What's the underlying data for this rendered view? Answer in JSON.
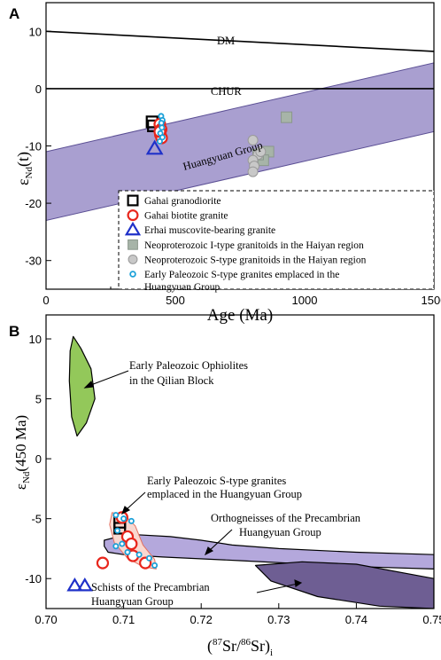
{
  "chart_data": [
    {
      "panel": "A",
      "type": "scatter",
      "xlabel": "Age (Ma)",
      "ylabel": "εNd(t)",
      "xlim": [
        0,
        1500
      ],
      "ylim": [
        -35,
        15
      ],
      "xticks": [
        "0",
        "500",
        "1000",
        "1500"
      ],
      "yticks": [
        "10",
        "0",
        "-10",
        "-20",
        "-30"
      ],
      "lines": [
        {
          "label": "DM",
          "x": [
            0,
            1500
          ],
          "y": [
            10,
            6.5
          ]
        },
        {
          "label": "CHUR",
          "x": [
            0,
            1500
          ],
          "y": [
            0,
            0
          ]
        }
      ],
      "band": {
        "label": "Huangyuan Group",
        "x": [
          0,
          1500
        ],
        "upper": [
          -11,
          4.5
        ],
        "lower": [
          -23,
          -7.5
        ],
        "color": "#a99fd0"
      },
      "series": [
        {
          "name": "Gahai granodiorite",
          "marker": "square",
          "color": "#000000",
          "points": [
            [
              410,
              -5.8
            ],
            [
              415,
              -6.5
            ]
          ]
        },
        {
          "name": "Gahai biotite granite",
          "marker": "circle",
          "color": "#e8261c",
          "points": [
            [
              440,
              -6.2
            ],
            [
              445,
              -7.1
            ],
            [
              442,
              -8.0
            ],
            [
              447,
              -8.6
            ],
            [
              440,
              -7.5
            ]
          ]
        },
        {
          "name": "Erhai muscovite-bearing granite",
          "marker": "triangle",
          "color": "#1f31c9",
          "points": [
            [
              420,
              -10.5
            ]
          ]
        },
        {
          "name": "Neoproterozoic I-type granitoids in the Haiyan region",
          "marker": "square",
          "color": "#a7b4a8",
          "points": [
            [
              930,
              -5
            ],
            [
              860,
              -11
            ],
            [
              840,
              -12.5
            ],
            [
              820,
              -11.5
            ]
          ]
        },
        {
          "name": "Neoproterozoic S-type granitoids in the Haiyan region",
          "marker": "circle",
          "color": "#c8c8c8",
          "points": [
            [
              800,
              -9
            ],
            [
              820,
              -11.5
            ],
            [
              800,
              -12.5
            ],
            [
              805,
              -13.5
            ],
            [
              800,
              -14.5
            ],
            [
              830,
              -11
            ]
          ]
        },
        {
          "name": "Early Paleozoic S-type granites emplaced in the Huangyuan Group",
          "marker": "circle-small",
          "color": "#1aa0d8",
          "points": [
            [
              445,
              -4.8
            ],
            [
              450,
              -5.5
            ],
            [
              448,
              -6.8
            ],
            [
              442,
              -7.8
            ],
            [
              450,
              -8.5
            ],
            [
              440,
              -9.2
            ],
            [
              446,
              -6.0
            ]
          ]
        }
      ]
    },
    {
      "panel": "B",
      "type": "scatter",
      "xlabel": "(87Sr/86Sr)i",
      "ylabel": "εNd(450 Ma)",
      "xlim": [
        0.7,
        0.75
      ],
      "ylim": [
        -12.5,
        12
      ],
      "xticks": [
        "0.70",
        "0.71",
        "0.72",
        "0.73",
        "0.74",
        "0.75"
      ],
      "yticks": [
        "10",
        "5",
        "0",
        "-5",
        "-10"
      ],
      "fields": [
        {
          "name": "Early Paleozoic Ophiolites in the Qilian Block",
          "color": "#93c85a",
          "outline": [
            [
              0.7035,
              10.2
            ],
            [
              0.7045,
              9.2
            ],
            [
              0.7058,
              7.5
            ],
            [
              0.7063,
              5.0
            ],
            [
              0.7052,
              3.0
            ],
            [
              0.704,
              1.9
            ],
            [
              0.7033,
              3.5
            ],
            [
              0.703,
              6.5
            ],
            [
              0.7031,
              9.0
            ]
          ]
        },
        {
          "name": "Orthogneisses of the Precambrian Huangyuan Group",
          "color": "#b4a8dc",
          "outline": [
            [
              0.7075,
              -6.8
            ],
            [
              0.7105,
              -6.3
            ],
            [
              0.716,
              -6.5
            ],
            [
              0.72,
              -6.8
            ],
            [
              0.724,
              -7.2
            ],
            [
              0.73,
              -7.5
            ],
            [
              0.74,
              -7.8
            ],
            [
              0.75,
              -8.0
            ],
            [
              0.75,
              -9.2
            ],
            [
              0.74,
              -9.0
            ],
            [
              0.725,
              -8.5
            ],
            [
              0.715,
              -8.2
            ],
            [
              0.71,
              -8.0
            ],
            [
              0.708,
              -7.8
            ],
            [
              0.7075,
              -7.3
            ]
          ]
        },
        {
          "name": "Schists of the Precambrian Huangyuan Group",
          "color": "#6e5e93",
          "outline": [
            [
              0.727,
              -8.9
            ],
            [
              0.733,
              -8.6
            ],
            [
              0.74,
              -8.8
            ],
            [
              0.75,
              -10.0
            ],
            [
              0.75,
              -12.5
            ],
            [
              0.743,
              -12.3
            ],
            [
              0.735,
              -11.5
            ],
            [
              0.729,
              -10.2
            ]
          ]
        },
        {
          "name": "Early Paleozoic S-type granites emplaced in the Huangyuan Group",
          "color": "#f9d8d0",
          "outline": [
            [
              0.7085,
              -4.5
            ],
            [
              0.71,
              -4.6
            ],
            [
              0.7115,
              -5.6
            ],
            [
              0.7125,
              -7.2
            ],
            [
              0.714,
              -8.4
            ],
            [
              0.7142,
              -9.2
            ],
            [
              0.7125,
              -9.0
            ],
            [
              0.7105,
              -8.3
            ],
            [
              0.7088,
              -7.0
            ],
            [
              0.7082,
              -5.5
            ]
          ]
        }
      ],
      "series": [
        {
          "name": "Gahai granodiorite",
          "marker": "square",
          "color": "#000000",
          "points": [
            [
              0.7095,
              -5.3
            ],
            [
              0.7095,
              -5.8
            ]
          ]
        },
        {
          "name": "Gahai biotite granite",
          "marker": "circle",
          "color": "#e8261c",
          "points": [
            [
              0.7098,
              -4.9
            ],
            [
              0.7105,
              -6.5
            ],
            [
              0.711,
              -7.1
            ],
            [
              0.7112,
              -8.1
            ],
            [
              0.7128,
              -8.7
            ],
            [
              0.7073,
              -8.7
            ]
          ]
        },
        {
          "name": "Erhai muscovite-bearing granite",
          "marker": "triangle",
          "color": "#1f31c9",
          "points": [
            [
              0.7037,
              -10.6
            ],
            [
              0.705,
              -10.6
            ]
          ]
        },
        {
          "name": "Early Paleozoic S-type granites emplaced in the Huangyuan Group",
          "marker": "circle-small",
          "color": "#1aa0d8",
          "points": [
            [
              0.709,
              -4.7
            ],
            [
              0.71,
              -5.0
            ],
            [
              0.711,
              -5.2
            ],
            [
              0.7092,
              -6.0
            ],
            [
              0.709,
              -7.3
            ],
            [
              0.7098,
              -7.1
            ],
            [
              0.7105,
              -7.8
            ],
            [
              0.712,
              -8.0
            ],
            [
              0.7133,
              -8.3
            ],
            [
              0.714,
              -8.9
            ]
          ]
        }
      ]
    }
  ],
  "labels": {
    "panel_a": "A",
    "panel_b": "B",
    "dm": "DM",
    "chur": "CHUR",
    "huangyuan_group": "Huangyuan Group",
    "ophiolites_1": "Early Paleozoic Ophiolites",
    "ophiolites_2": "in the Qilian Block",
    "sgranites_1": "Early Paleozoic S-type granites",
    "sgranites_2": "emplaced in the Huangyuan Group",
    "ortho_1": "Orthogneisses of the Precambrian",
    "ortho_2": "Huangyuan Group",
    "schists_1": "Schists of the Precambrian",
    "schists_2": "Huangyuan Group"
  },
  "legend": [
    {
      "marker": "square",
      "color": "#000000",
      "label": "Gahai granodiorite"
    },
    {
      "marker": "circle",
      "color": "#e8261c",
      "label": "Gahai biotite granite"
    },
    {
      "marker": "triangle",
      "color": "#1f31c9",
      "label": "Erhai muscovite-bearing granite"
    },
    {
      "marker": "square",
      "color": "#a7b4a8",
      "label": "Neoproterozoic I-type granitoids in the Haiyan region"
    },
    {
      "marker": "circle",
      "color": "#c8c8c8",
      "label": "Neoproterozoic S-type granitoids in the Haiyan region"
    },
    {
      "marker": "circle-small",
      "color": "#1aa0d8",
      "label": "Early Paleozoic S-type granites emplaced in the",
      "label2": "Huangyuan Group"
    }
  ]
}
